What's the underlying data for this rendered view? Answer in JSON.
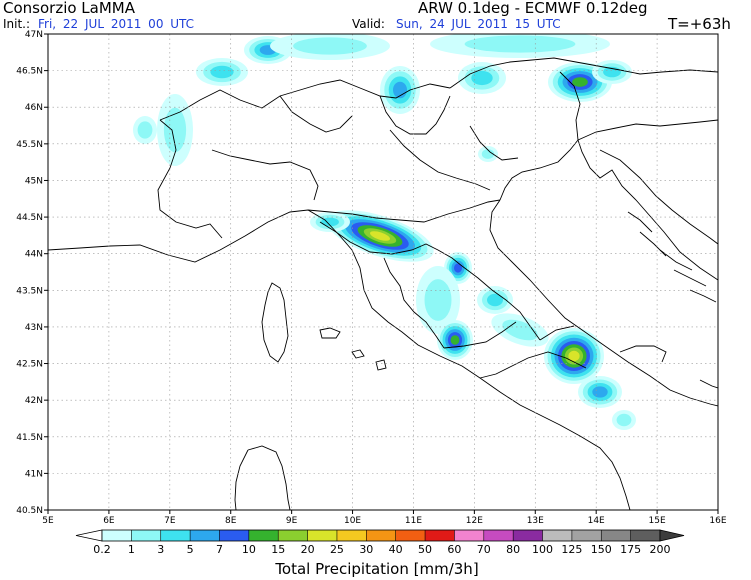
{
  "header": {
    "org": "Consorzio LaMMA",
    "model": "ARW 0.1deg - ECMWF 0.12deg",
    "init_label": "Init.:",
    "init_value": "Fri, 22 JUL 2011 00 UTC",
    "valid_label": "Valid:",
    "valid_value": "Sun, 24 JUL 2011 15 UTC",
    "lead": "T=+63h"
  },
  "axes": {
    "lon_labels": [
      "5E",
      "6E",
      "7E",
      "8E",
      "9E",
      "10E",
      "11E",
      "12E",
      "13E",
      "14E",
      "15E",
      "16E"
    ],
    "lat_labels": [
      "47N",
      "46.5N",
      "46N",
      "45.5N",
      "45N",
      "44.5N",
      "44N",
      "43.5N",
      "43N",
      "42.5N",
      "42N",
      "41.5N",
      "41N",
      "40.5N"
    ]
  },
  "colorbar": {
    "title": "Total Precipitation [mm/3h]",
    "ticks": [
      "0.2",
      "1",
      "3",
      "5",
      "7",
      "10",
      "15",
      "20",
      "25",
      "30",
      "40",
      "50",
      "60",
      "70",
      "80",
      "100",
      "125",
      "150",
      "175",
      "200"
    ],
    "colors": [
      "#cdfffe",
      "#8ef8f6",
      "#3ee2ef",
      "#2da8ee",
      "#2a5cf0",
      "#35b22e",
      "#8bcf2f",
      "#d9e42a",
      "#f5c920",
      "#f59514",
      "#f25f12",
      "#e01a17",
      "#f283cf",
      "#c64bc0",
      "#8a2ba0",
      "#bcbcbc",
      "#a2a2a2",
      "#878787",
      "#5e5e5e"
    ]
  }
}
